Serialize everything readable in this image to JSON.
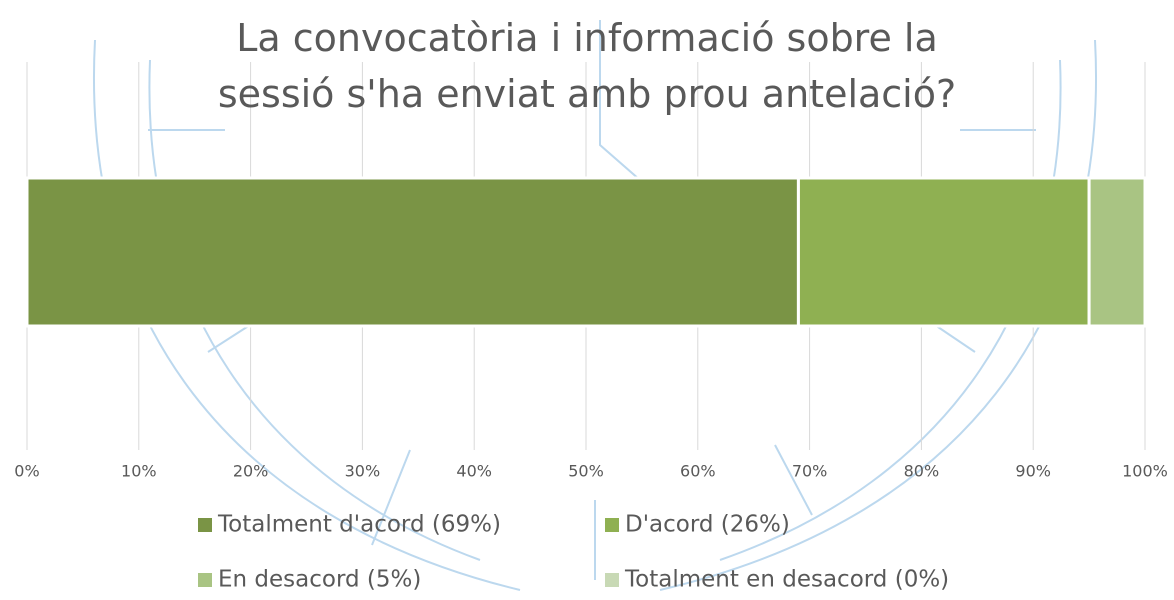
{
  "chart_data": {
    "type": "stacked_barh",
    "title": "La convocatòria i informació sobre la sessió s'ha enviat amb prou antelació?",
    "series": [
      {
        "name": "Totalment d'acord (69%)",
        "color": "#7a9445",
        "values": [
          69
        ]
      },
      {
        "name": "D'acord (26%)",
        "color": "#8fb052",
        "values": [
          26
        ]
      },
      {
        "name": "En desacord (5%)",
        "color": "#a9c483",
        "values": [
          5
        ]
      },
      {
        "name": "Totalment en desacord (0%)",
        "color": "#c8d9b5",
        "values": [
          0
        ]
      }
    ],
    "xlim": [
      0,
      100
    ],
    "xticks": [
      {
        "value": 0,
        "label": "0%"
      },
      {
        "value": 10,
        "label": "10%"
      },
      {
        "value": 20,
        "label": "20%"
      },
      {
        "value": 30,
        "label": "30%"
      },
      {
        "value": 40,
        "label": "40%"
      },
      {
        "value": 50,
        "label": "50%"
      },
      {
        "value": 60,
        "label": "60%"
      },
      {
        "value": 70,
        "label": "70%"
      },
      {
        "value": 80,
        "label": "80%"
      },
      {
        "value": 90,
        "label": "90%"
      },
      {
        "value": 100,
        "label": "100%"
      }
    ],
    "grid": true,
    "legend": "bottom"
  }
}
